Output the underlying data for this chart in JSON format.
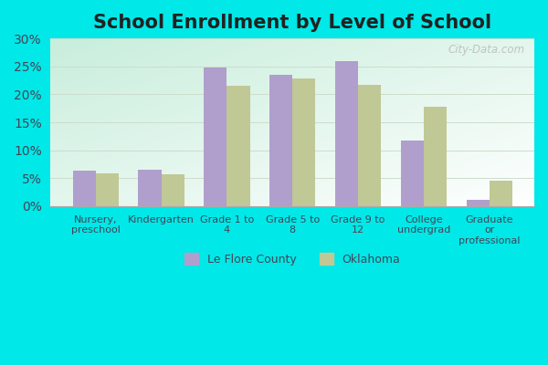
{
  "title": "School Enrollment by Level of School",
  "categories": [
    "Nursery,\npreschool",
    "Kindergarten",
    "Grade 1 to\n4",
    "Grade 5 to\n8",
    "Grade 9 to\n12",
    "College\nundergrad",
    "Graduate\nor\nprofessional"
  ],
  "le_flore": [
    6.3,
    6.5,
    24.8,
    23.5,
    26.0,
    11.8,
    1.2
  ],
  "oklahoma": [
    5.8,
    5.7,
    21.5,
    22.9,
    21.7,
    17.8,
    4.6
  ],
  "le_flore_color": "#b09fcc",
  "oklahoma_color": "#c0c896",
  "outer_bg_color": "#00e8e8",
  "plot_bg_top_left": "#c8ede0",
  "plot_bg_bottom_right": "#f8fffc",
  "ylim": [
    0,
    30
  ],
  "yticks": [
    0,
    5,
    10,
    15,
    20,
    25,
    30
  ],
  "title_fontsize": 15,
  "legend_labels": [
    "Le Flore County",
    "Oklahoma"
  ],
  "watermark": "City-Data.com",
  "bar_width": 0.35,
  "tick_fontsize": 8,
  "title_color": "#222222"
}
